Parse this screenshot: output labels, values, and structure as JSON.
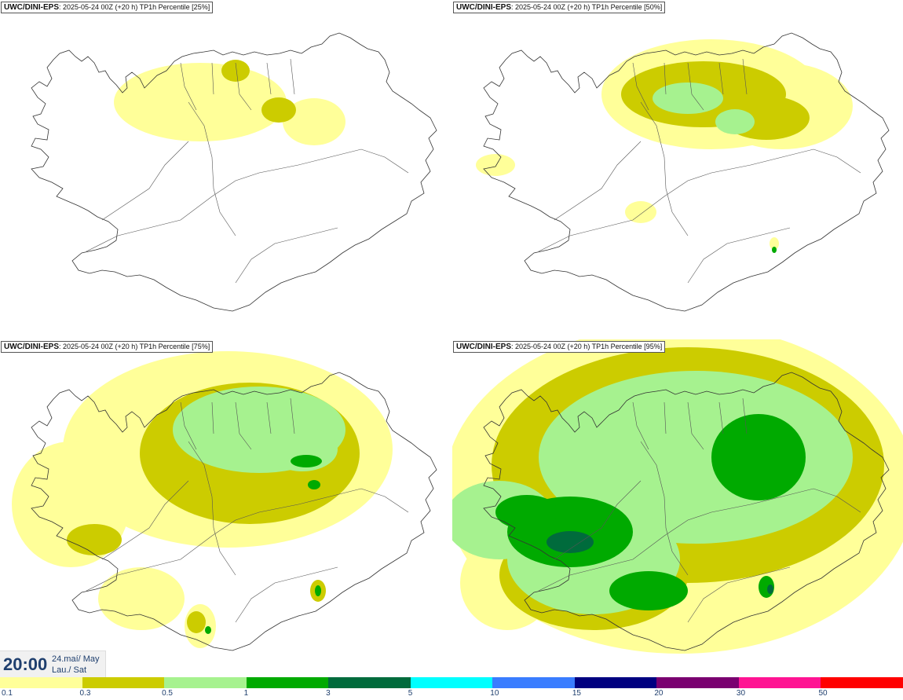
{
  "panels": [
    {
      "model": "UWC/DINI-EPS",
      "info": ": 2025-05-24 00Z (+20 h) TP1h Percentile [25%]",
      "intensity": 0
    },
    {
      "model": "UWC/DINI-EPS",
      "info": ": 2025-05-24 00Z (+20 h) TP1h Percentile [50%]",
      "intensity": 1
    },
    {
      "model": "UWC/DINI-EPS",
      "info": ": 2025-05-24 00Z (+20 h) TP1h Percentile [75%]",
      "intensity": 2
    },
    {
      "model": "UWC/DINI-EPS",
      "info": ": 2025-05-24 00Z (+20 h) TP1h Percentile [95%]",
      "intensity": 3
    }
  ],
  "clock": {
    "time": "20:00",
    "date_line1": "24.maí/ May",
    "date_line2": "Lau./ Sat"
  },
  "legend": {
    "colors": [
      "#ffff99",
      "#cccc00",
      "#a6f28f",
      "#00aa00",
      "#006b3c",
      "#00ffff",
      "#3a7dff",
      "#000080",
      "#7a0070",
      "#ff1493",
      "#ff0000"
    ],
    "labels": [
      "0.1",
      "0.3",
      "0.5",
      "1",
      "3",
      "5",
      "10",
      "15",
      "20",
      "30",
      "50"
    ]
  }
}
